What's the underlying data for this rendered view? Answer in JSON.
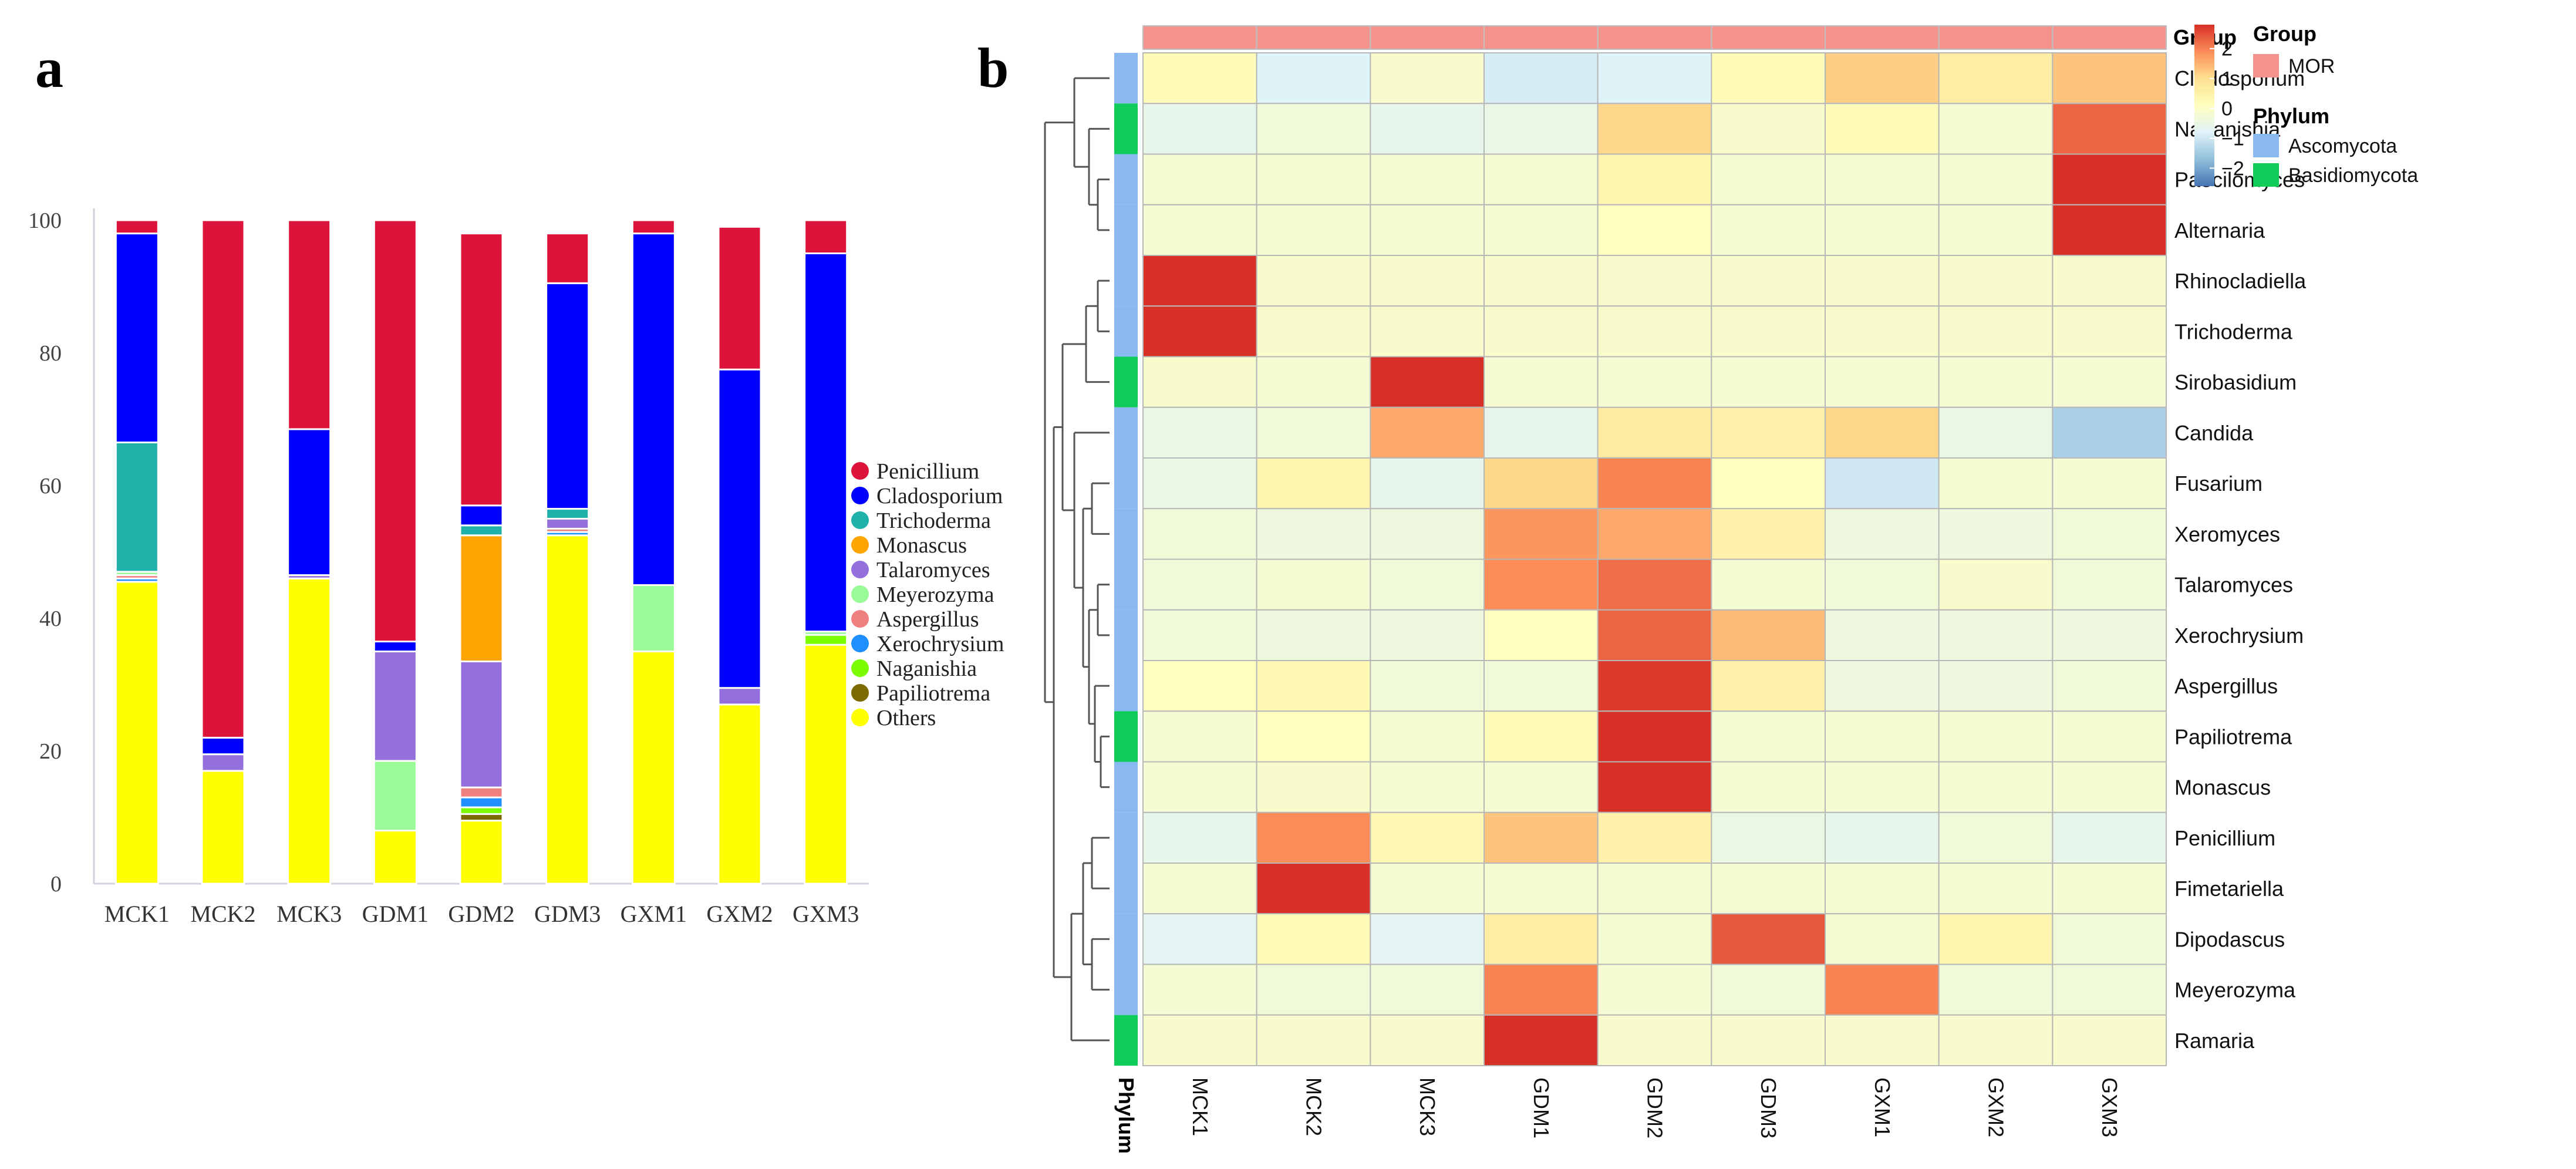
{
  "panel_labels": {
    "a": "a",
    "b": "b"
  },
  "chart_data": [
    {
      "type": "bar",
      "stacked": true,
      "panel": "a",
      "categories": [
        "MCK1",
        "MCK2",
        "MCK3",
        "GDM1",
        "GDM2",
        "GDM3",
        "GXM1",
        "GXM2",
        "GXM3"
      ],
      "ylim": [
        0,
        100
      ],
      "yticks": [
        "0",
        "20",
        "40",
        "60",
        "80",
        "100"
      ],
      "legend_position": "right",
      "series": [
        {
          "name": "Others",
          "color": "#FFFF00",
          "values": [
            45.5,
            17,
            46,
            8,
            9.5,
            52.5,
            35,
            27,
            36
          ]
        },
        {
          "name": "Papiliotrema",
          "color": "#7B6A00",
          "values": [
            0,
            0,
            0,
            0,
            1,
            0,
            0,
            0,
            0
          ]
        },
        {
          "name": "Naganishia",
          "color": "#7CFC00",
          "values": [
            0,
            0,
            0,
            0,
            1,
            0,
            0,
            0,
            1.5
          ]
        },
        {
          "name": "Xerochrysium",
          "color": "#1E90FF",
          "values": [
            0.5,
            0,
            0,
            0,
            1.5,
            0.5,
            0,
            0,
            0
          ]
        },
        {
          "name": "Aspergillus",
          "color": "#F08080",
          "values": [
            0.5,
            0,
            0,
            0,
            1.5,
            0.5,
            0,
            0,
            0
          ]
        },
        {
          "name": "Meyerozyma",
          "color": "#98FB98",
          "values": [
            0.5,
            0,
            0,
            10.5,
            0,
            0,
            10,
            0,
            0.5
          ]
        },
        {
          "name": "Talaromyces",
          "color": "#9370DB",
          "values": [
            0,
            2.5,
            0.5,
            16.5,
            19,
            1.5,
            0,
            2.5,
            0
          ]
        },
        {
          "name": "Monascus",
          "color": "#FFA500",
          "values": [
            0,
            0,
            0,
            0,
            19,
            0,
            0,
            0,
            0
          ]
        },
        {
          "name": "Trichoderma",
          "color": "#20B2AA",
          "values": [
            19.5,
            0,
            0,
            0,
            1.5,
            1.5,
            0,
            0,
            0
          ]
        },
        {
          "name": "Cladosporium",
          "color": "#0000FF",
          "values": [
            31.5,
            2.5,
            22,
            1.5,
            3,
            34,
            53,
            48,
            57
          ]
        },
        {
          "name": "Penicillium",
          "color": "#DC143C",
          "values": [
            2,
            78,
            31.5,
            63.5,
            41,
            7.5,
            2,
            21.5,
            5
          ]
        }
      ],
      "legend_order": [
        "Penicillium",
        "Cladosporium",
        "Trichoderma",
        "Monascus",
        "Talaromyces",
        "Meyerozyma",
        "Aspergillus",
        "Xerochrysium",
        "Naganishia",
        "Papiliotrema",
        "Others"
      ]
    },
    {
      "type": "heatmap",
      "panel": "b",
      "columns": [
        "MCK1",
        "MCK2",
        "MCK3",
        "GDM1",
        "GDM2",
        "GDM3",
        "GXM1",
        "GXM2",
        "GXM3"
      ],
      "rows": [
        "Cladosporium",
        "Naganishia",
        "Paecilomyces",
        "Alternaria",
        "Rhinocladiella",
        "Trichoderma",
        "Sirobasidium",
        "Candida",
        "Fusarium",
        "Xeromyces",
        "Talaromyces",
        "Xerochrysium",
        "Aspergillus",
        "Papiliotrema",
        "Monascus",
        "Penicillium",
        "Fimetariella",
        "Dipodascus",
        "Meyerozyma",
        "Ramaria"
      ],
      "values": [
        [
          0.2,
          -0.8,
          -0.1,
          -0.9,
          -0.8,
          0.2,
          1.2,
          0.6,
          1.3
        ],
        [
          -0.6,
          -0.3,
          -0.6,
          -0.5,
          1.1,
          -0.1,
          0.2,
          -0.2,
          2.3
        ],
        [
          -0.2,
          -0.2,
          -0.2,
          -0.2,
          0.4,
          -0.2,
          -0.2,
          -0.2,
          2.8
        ],
        [
          -0.2,
          -0.2,
          -0.2,
          -0.2,
          0.1,
          -0.2,
          -0.2,
          -0.2,
          2.8
        ],
        [
          2.8,
          -0.1,
          -0.1,
          -0.1,
          -0.1,
          -0.1,
          -0.1,
          -0.1,
          -0.1
        ],
        [
          2.8,
          -0.1,
          -0.1,
          -0.1,
          -0.1,
          -0.1,
          -0.1,
          -0.1,
          -0.1
        ],
        [
          -0.1,
          -0.2,
          2.8,
          -0.2,
          -0.2,
          -0.2,
          -0.2,
          -0.2,
          -0.2
        ],
        [
          -0.5,
          -0.3,
          1.6,
          -0.6,
          0.7,
          0.5,
          1.1,
          -0.5,
          -1.4
        ],
        [
          -0.5,
          0.4,
          -0.6,
          1.1,
          2.0,
          0.1,
          -1.0,
          -0.2,
          -0.2
        ],
        [
          -0.3,
          -0.4,
          -0.4,
          1.8,
          1.6,
          0.5,
          -0.4,
          -0.4,
          -0.3
        ],
        [
          -0.3,
          -0.2,
          -0.3,
          1.9,
          2.2,
          -0.2,
          -0.3,
          -0.1,
          -0.3
        ],
        [
          -0.3,
          -0.4,
          -0.4,
          0.1,
          2.3,
          1.4,
          -0.4,
          -0.4,
          -0.4
        ],
        [
          0.1,
          0.3,
          -0.3,
          -0.3,
          2.7,
          0.5,
          -0.4,
          -0.4,
          -0.3
        ],
        [
          -0.2,
          0.1,
          -0.2,
          0.2,
          2.8,
          -0.2,
          -0.2,
          -0.2,
          -0.2
        ],
        [
          -0.2,
          -0.1,
          -0.2,
          -0.2,
          2.8,
          -0.2,
          -0.2,
          -0.2,
          -0.2
        ],
        [
          -0.6,
          1.9,
          0.3,
          1.3,
          0.5,
          -0.5,
          -0.6,
          -0.3,
          -0.6
        ],
        [
          -0.2,
          2.8,
          -0.2,
          -0.2,
          -0.2,
          -0.2,
          -0.2,
          -0.2,
          -0.2
        ],
        [
          -0.7,
          0.2,
          -0.7,
          0.6,
          -0.2,
          2.4,
          -0.2,
          0.4,
          -0.3
        ],
        [
          -0.2,
          -0.3,
          -0.3,
          2.0,
          -0.2,
          -0.3,
          2.0,
          -0.3,
          -0.3
        ],
        [
          -0.1,
          -0.1,
          -0.1,
          2.8,
          -0.1,
          -0.1,
          -0.1,
          -0.1,
          -0.1
        ]
      ],
      "row_phylum": [
        "Ascomycota",
        "Basidiomycota",
        "Ascomycota",
        "Ascomycota",
        "Ascomycota",
        "Ascomycota",
        "Basidiomycota",
        "Ascomycota",
        "Ascomycota",
        "Ascomycota",
        "Ascomycota",
        "Ascomycota",
        "Ascomycota",
        "Basidiomycota",
        "Ascomycota",
        "Ascomycota",
        "Ascomycota",
        "Ascomycota",
        "Ascomycota",
        "Basidiomycota"
      ],
      "column_group": [
        "MOR",
        "MOR",
        "MOR",
        "MOR",
        "MOR",
        "MOR",
        "MOR",
        "MOR",
        "MOR"
      ],
      "annotation_labels": {
        "group": "Group",
        "phylum": "Phylum"
      },
      "colorbar": {
        "ticks": [
          "2",
          "1",
          "0",
          "−1",
          "−2"
        ],
        "tick_values": [
          2,
          1,
          0,
          -1,
          -2
        ],
        "range": [
          -2.6,
          2.8
        ],
        "colors": [
          "#4575B4",
          "#91BFDB",
          "#E0F3F8",
          "#FFFFBF",
          "#FEE090",
          "#FC8D59",
          "#D73027"
        ]
      },
      "legend": {
        "group_title": "Group",
        "groups": [
          {
            "name": "MOR",
            "color": "#F4938E"
          }
        ],
        "phylum_title": "Phylum",
        "phyla": [
          {
            "name": "Ascomycota",
            "color": "#8AB8F0"
          },
          {
            "name": "Basidiomycota",
            "color": "#0FCB5A"
          }
        ]
      },
      "dendrogram": "rows"
    }
  ]
}
